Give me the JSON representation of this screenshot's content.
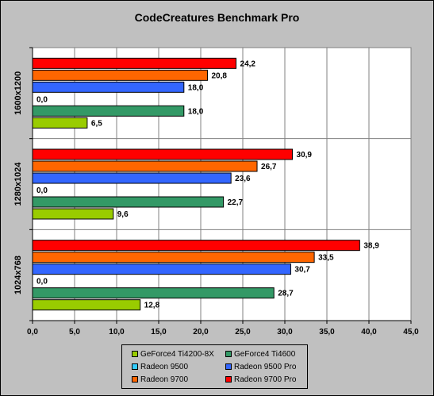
{
  "chart_data": {
    "type": "bar",
    "orientation": "horizontal",
    "title": "CodeCreatures Benchmark Pro",
    "xlabel": "",
    "ylabel": "",
    "xlim": [
      0,
      45
    ],
    "x_ticks": [
      "0,0",
      "5,0",
      "10,0",
      "15,0",
      "20,0",
      "25,0",
      "30,0",
      "35,0",
      "40,0",
      "45,0"
    ],
    "x_tick_step": 5,
    "grid": "vertical major gridlines",
    "legend_position": "bottom",
    "categories": [
      "1600x1200",
      "1280x1024",
      "1024x768"
    ],
    "series": [
      {
        "name": "GeForce4 Ti4200-8X",
        "color": "#99cc00",
        "values": [
          6.5,
          9.6,
          12.8
        ],
        "labels": [
          "6,5",
          "9,6",
          "12,8"
        ]
      },
      {
        "name": "GeForce4 Ti4600",
        "color": "#339966",
        "values": [
          18.0,
          22.7,
          28.7
        ],
        "labels": [
          "18,0",
          "22,7",
          "28,7"
        ]
      },
      {
        "name": "Radeon 9500",
        "color": "#33ccff",
        "values": [
          0.0,
          0.0,
          0.0
        ],
        "labels": [
          "0,0",
          "0,0",
          "0,0"
        ]
      },
      {
        "name": "Radeon 9500 Pro",
        "color": "#3366ff",
        "values": [
          18.0,
          23.6,
          30.7
        ],
        "labels": [
          "18,0",
          "23,6",
          "30,7"
        ]
      },
      {
        "name": "Radeon 9700",
        "color": "#ff6600",
        "values": [
          20.8,
          26.7,
          33.5
        ],
        "labels": [
          "20,8",
          "26,7",
          "33,5"
        ]
      },
      {
        "name": "Radeon 9700 Pro",
        "color": "#ff0000",
        "values": [
          24.2,
          30.9,
          38.9
        ],
        "labels": [
          "24,2",
          "30,9",
          "38,9"
        ]
      }
    ]
  }
}
